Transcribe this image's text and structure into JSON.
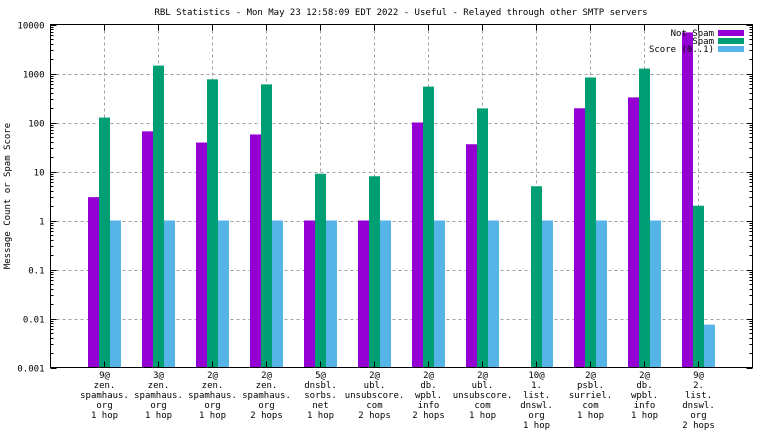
{
  "chart_data": {
    "type": "bar",
    "title": "RBL Statistics - Mon May 23 12:58:09 EDT 2022 - Useful - Relayed through other SMTP servers",
    "xlabel": "",
    "ylabel": "Message Count or Spam Score",
    "yscale": "log",
    "ylim": [
      0.001,
      10000
    ],
    "yticks": [
      "0.001",
      "0.01",
      "0.1",
      "1",
      "10",
      "100",
      "1000",
      "10000"
    ],
    "ytick_values": [
      0.001,
      0.01,
      0.1,
      1,
      10,
      100,
      1000,
      10000
    ],
    "grid": true,
    "legend_position": "top-right",
    "categories": [
      [
        "9@",
        "zen.",
        "spamhaus.",
        "org",
        "1 hop"
      ],
      [
        "3@",
        "zen.",
        "spamhaus.",
        "org",
        "1 hop"
      ],
      [
        "2@",
        "zen.",
        "spamhaus.",
        "org",
        "1 hop"
      ],
      [
        "2@",
        "zen.",
        "spamhaus.",
        "org",
        "2 hops"
      ],
      [
        "5@",
        "dnsbl.",
        "sorbs.",
        "net",
        "1 hop"
      ],
      [
        "2@",
        "ubl.",
        "unsubscore.",
        "com",
        "2 hops"
      ],
      [
        "2@",
        "db.",
        "wpbl.",
        "info",
        "2 hops"
      ],
      [
        "2@",
        "ubl.",
        "unsubscore.",
        "com",
        "1 hop"
      ],
      [
        "10@",
        "1.",
        "list.",
        "dnswl.",
        "org",
        "1 hop"
      ],
      [
        "2@",
        "psbl.",
        "surriel.",
        "com",
        "1 hop"
      ],
      [
        "2@",
        "db.",
        "wpbl.",
        "info",
        "1 hop"
      ],
      [
        "9@",
        "2.",
        "list.",
        "dnswl.",
        "org",
        "2 hops"
      ]
    ],
    "series": [
      {
        "name": "Not Spam",
        "color": "#9400D3",
        "values": [
          3,
          66,
          39,
          57,
          1,
          1,
          100,
          36,
          0,
          195,
          325,
          6900
        ]
      },
      {
        "name": "Spam",
        "color": "#009E73",
        "values": [
          126,
          1450,
          760,
          600,
          9,
          8,
          540,
          194,
          5,
          830,
          1260,
          2
        ]
      },
      {
        "name": "Score (0..1)",
        "color": "#56B4E9",
        "values": [
          1,
          1,
          1,
          1,
          1,
          1,
          1,
          1,
          1,
          1,
          1,
          0.0075
        ]
      }
    ]
  }
}
